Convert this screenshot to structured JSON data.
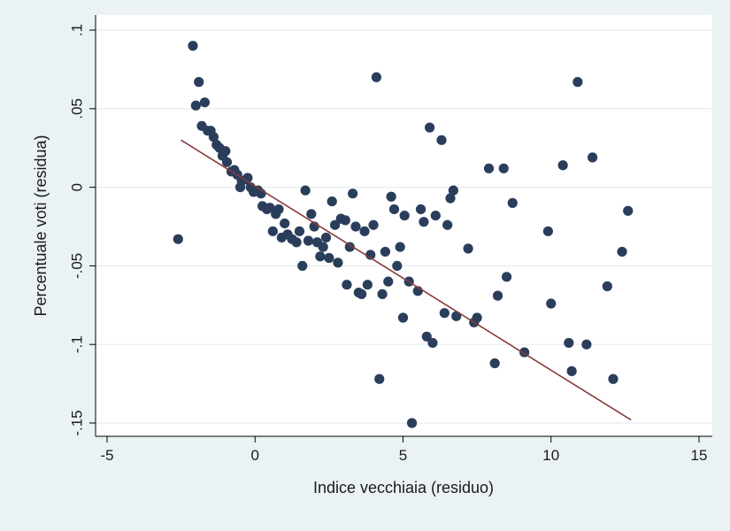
{
  "chart_data": {
    "type": "scatter",
    "title": "",
    "xlabel": "Indice vecchiaia (residuo)",
    "ylabel": "Percentuale voti (residua)",
    "xlim": [
      -5,
      15
    ],
    "ylim": [
      -0.15,
      0.1
    ],
    "x_ticks": [
      {
        "value": -5,
        "label": "-5"
      },
      {
        "value": 0,
        "label": "0"
      },
      {
        "value": 5,
        "label": "5"
      },
      {
        "value": 10,
        "label": "10"
      },
      {
        "value": 15,
        "label": "15"
      }
    ],
    "y_ticks": [
      {
        "value": 0.1,
        "label": ".1"
      },
      {
        "value": 0.05,
        "label": ".05"
      },
      {
        "value": 0,
        "label": "0"
      },
      {
        "value": -0.05,
        "label": "-.05"
      },
      {
        "value": -0.1,
        "label": "-.1"
      },
      {
        "value": -0.15,
        "label": "-.15"
      }
    ],
    "grid": true,
    "legend": "none",
    "colors": {
      "background": "#eaf2f3",
      "plot_background": "#ffffff",
      "grid": "#e6ecee",
      "marker": "#2a3e5c",
      "fit_line": "#8a3a3a",
      "axis": "#000000"
    },
    "fit_line": {
      "x": [
        -2.5,
        12.7
      ],
      "y": [
        0.03,
        -0.148
      ]
    },
    "points": [
      [
        -2.6,
        -0.033
      ],
      [
        -2.1,
        0.09
      ],
      [
        -2.0,
        0.052
      ],
      [
        -1.9,
        0.067
      ],
      [
        -1.8,
        0.039
      ],
      [
        -1.7,
        0.054
      ],
      [
        -1.6,
        0.036
      ],
      [
        -1.5,
        0.036
      ],
      [
        -1.4,
        0.032
      ],
      [
        -1.3,
        0.027
      ],
      [
        -1.2,
        0.025
      ],
      [
        -1.1,
        0.02
      ],
      [
        -1.0,
        0.023
      ],
      [
        -0.95,
        0.016
      ],
      [
        -0.8,
        0.01
      ],
      [
        -0.7,
        0.011
      ],
      [
        -0.6,
        0.008
      ],
      [
        -0.5,
        0.0
      ],
      [
        -0.45,
        0.004
      ],
      [
        -0.3,
        0.005
      ],
      [
        -0.25,
        0.006
      ],
      [
        -0.15,
        0.0
      ],
      [
        -0.05,
        -0.003
      ],
      [
        0.1,
        -0.002
      ],
      [
        0.2,
        -0.004
      ],
      [
        0.25,
        -0.012
      ],
      [
        0.4,
        -0.014
      ],
      [
        0.5,
        -0.013
      ],
      [
        0.6,
        -0.028
      ],
      [
        0.7,
        -0.017
      ],
      [
        0.8,
        -0.014
      ],
      [
        0.9,
        -0.032
      ],
      [
        1.0,
        -0.023
      ],
      [
        1.1,
        -0.03
      ],
      [
        1.25,
        -0.033
      ],
      [
        1.4,
        -0.035
      ],
      [
        1.5,
        -0.028
      ],
      [
        1.6,
        -0.05
      ],
      [
        1.7,
        -0.002
      ],
      [
        1.8,
        -0.034
      ],
      [
        1.9,
        -0.017
      ],
      [
        2.0,
        -0.025
      ],
      [
        2.1,
        -0.035
      ],
      [
        2.2,
        -0.044
      ],
      [
        2.3,
        -0.038
      ],
      [
        2.4,
        -0.032
      ],
      [
        2.5,
        -0.045
      ],
      [
        2.6,
        -0.009
      ],
      [
        2.7,
        -0.024
      ],
      [
        2.8,
        -0.048
      ],
      [
        2.9,
        -0.02
      ],
      [
        3.05,
        -0.021
      ],
      [
        3.1,
        -0.062
      ],
      [
        3.2,
        -0.038
      ],
      [
        3.3,
        -0.004
      ],
      [
        3.4,
        -0.025
      ],
      [
        3.5,
        -0.067
      ],
      [
        3.6,
        -0.068
      ],
      [
        3.7,
        -0.028
      ],
      [
        3.8,
        -0.062
      ],
      [
        3.9,
        -0.043
      ],
      [
        4.0,
        -0.024
      ],
      [
        4.1,
        0.07
      ],
      [
        4.2,
        -0.122
      ],
      [
        4.3,
        -0.068
      ],
      [
        4.4,
        -0.041
      ],
      [
        4.5,
        -0.06
      ],
      [
        4.6,
        -0.006
      ],
      [
        4.7,
        -0.014
      ],
      [
        4.8,
        -0.05
      ],
      [
        4.9,
        -0.038
      ],
      [
        5.0,
        -0.083
      ],
      [
        5.05,
        -0.018
      ],
      [
        5.2,
        -0.06
      ],
      [
        5.3,
        -0.15
      ],
      [
        5.5,
        -0.066
      ],
      [
        5.6,
        -0.014
      ],
      [
        5.7,
        -0.022
      ],
      [
        5.8,
        -0.095
      ],
      [
        5.9,
        0.038
      ],
      [
        6.0,
        -0.099
      ],
      [
        6.1,
        -0.018
      ],
      [
        6.3,
        0.03
      ],
      [
        6.4,
        -0.08
      ],
      [
        6.5,
        -0.024
      ],
      [
        6.6,
        -0.007
      ],
      [
        6.7,
        -0.002
      ],
      [
        6.8,
        -0.082
      ],
      [
        7.2,
        -0.039
      ],
      [
        7.4,
        -0.086
      ],
      [
        7.5,
        -0.083
      ],
      [
        7.9,
        0.012
      ],
      [
        8.1,
        -0.112
      ],
      [
        8.2,
        -0.069
      ],
      [
        8.4,
        0.012
      ],
      [
        8.5,
        -0.057
      ],
      [
        8.7,
        -0.01
      ],
      [
        9.1,
        -0.105
      ],
      [
        9.9,
        -0.028
      ],
      [
        10.0,
        -0.074
      ],
      [
        10.4,
        0.014
      ],
      [
        10.6,
        -0.099
      ],
      [
        10.7,
        -0.117
      ],
      [
        10.9,
        0.067
      ],
      [
        11.2,
        -0.1
      ],
      [
        11.4,
        0.019
      ],
      [
        11.9,
        -0.063
      ],
      [
        12.1,
        -0.122
      ],
      [
        12.4,
        -0.041
      ],
      [
        12.6,
        -0.015
      ]
    ]
  }
}
